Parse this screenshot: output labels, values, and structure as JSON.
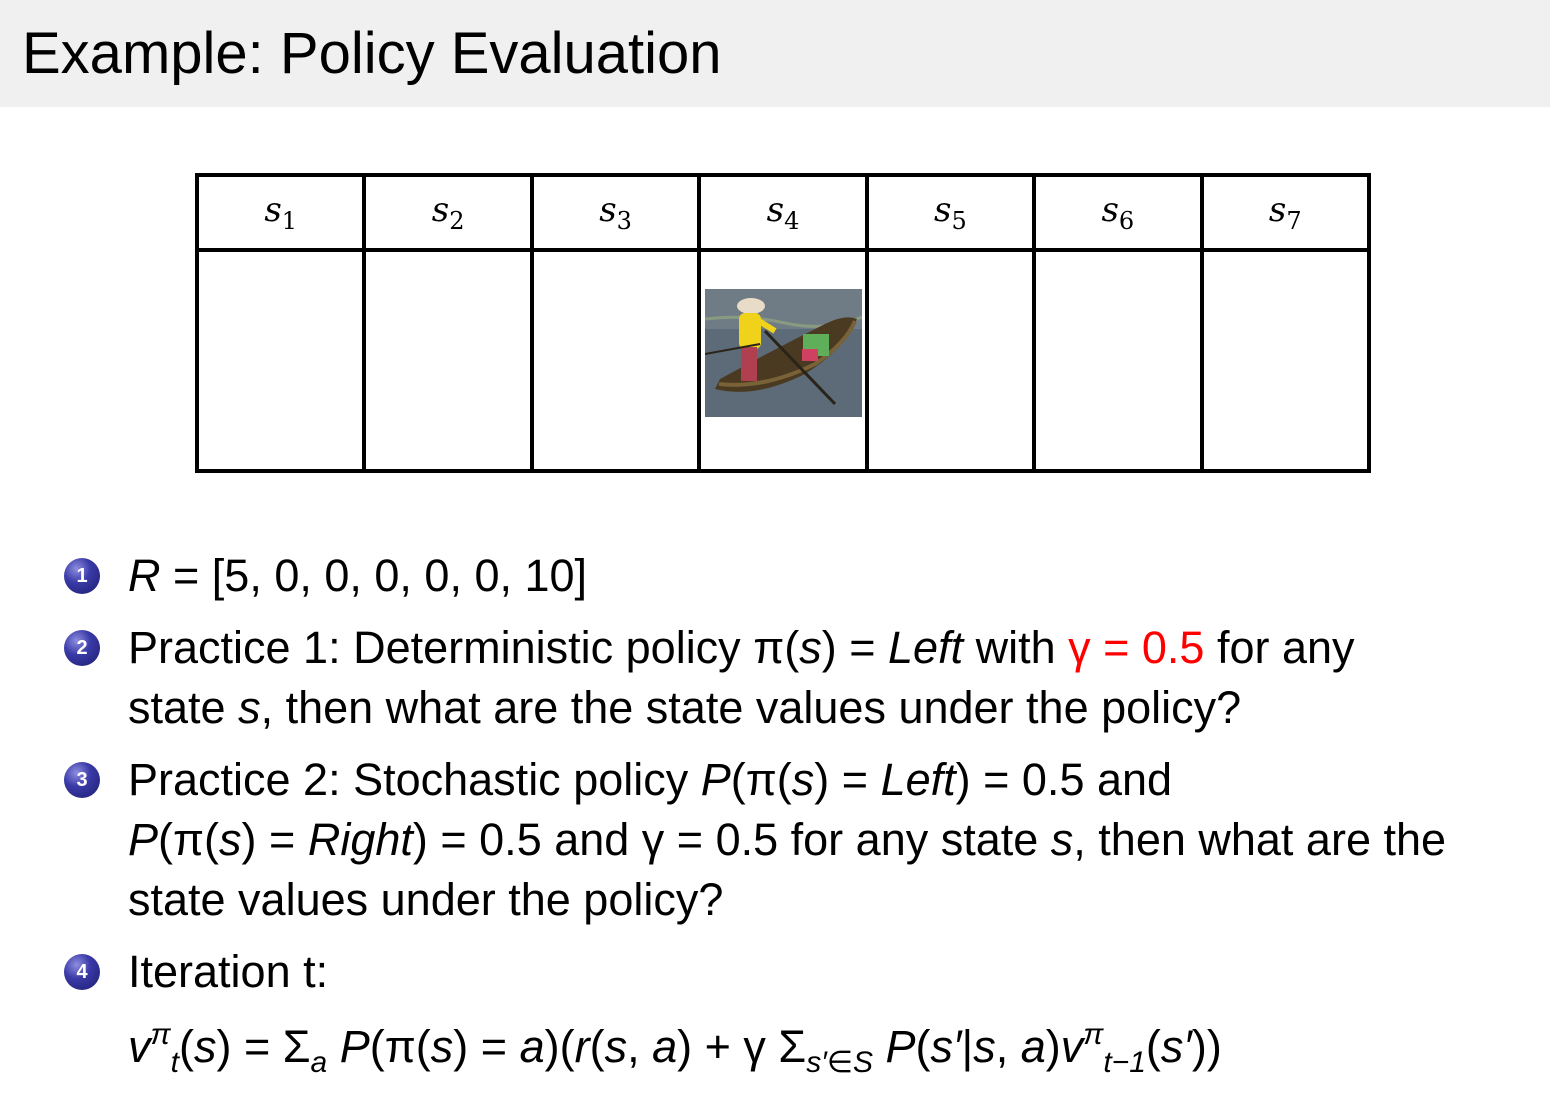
{
  "slide": {
    "title": "Example:  Policy Evaluation"
  },
  "states": [
    "1",
    "2",
    "3",
    "4",
    "5",
    "6",
    "7"
  ],
  "state_symbol": "s",
  "boat_cell_state": "s4",
  "accent_color": "#ff0000",
  "bullet_color": "#2a2a90",
  "bullets": [
    {
      "number": "1",
      "lines": [
        [
          [
            "R",
            "i"
          ],
          [
            " = [5, 0, 0, 0, 0, 0, 10]",
            "n"
          ]
        ]
      ]
    },
    {
      "number": "2",
      "lines": [
        [
          [
            "Practice 1:  Deterministic policy π(",
            "n"
          ],
          [
            "s",
            "i"
          ],
          [
            ") = ",
            "n"
          ],
          [
            "Left",
            "i"
          ],
          [
            " with ",
            "n"
          ],
          [
            "γ = 0.5",
            "r"
          ],
          [
            " for any",
            "n"
          ]
        ],
        [
          [
            "state ",
            "n"
          ],
          [
            "s",
            "i"
          ],
          [
            ", then what are the state values under the policy?",
            "n"
          ]
        ]
      ]
    },
    {
      "number": "3",
      "lines": [
        [
          [
            "Practice 2:  Stochastic policy ",
            "n"
          ],
          [
            "P",
            "i"
          ],
          [
            "(π(",
            "n"
          ],
          [
            "s",
            "i"
          ],
          [
            ") = ",
            "n"
          ],
          [
            "Left",
            "i"
          ],
          [
            ") = 0.5 and",
            "n"
          ]
        ],
        [
          [
            "P",
            "i"
          ],
          [
            "(π(",
            "n"
          ],
          [
            "s",
            "i"
          ],
          [
            ") = ",
            "n"
          ],
          [
            "Right",
            "i"
          ],
          [
            ") = 0.5 and γ = 0.5 for any state ",
            "n"
          ],
          [
            "s",
            "i"
          ],
          [
            ", then what are the",
            "n"
          ]
        ],
        [
          [
            "state values under the policy?",
            "n"
          ]
        ]
      ]
    },
    {
      "number": "4",
      "lines": [
        [
          [
            "Iteration t:",
            "n"
          ]
        ],
        [
          [
            "v",
            "i"
          ],
          [
            "π",
            "sup"
          ],
          [
            "t",
            "sub"
          ],
          [
            "(",
            "n"
          ],
          [
            "s",
            "i"
          ],
          [
            ") = Σ",
            "n"
          ],
          [
            "a",
            "sub"
          ],
          [
            " P",
            "i"
          ],
          [
            "(π(",
            "n"
          ],
          [
            "s",
            "i"
          ],
          [
            ") = ",
            "n"
          ],
          [
            "a",
            "i"
          ],
          [
            ")(",
            "n"
          ],
          [
            "r",
            "i"
          ],
          [
            "(",
            "n"
          ],
          [
            "s",
            "i"
          ],
          [
            ", ",
            "n"
          ],
          [
            "a",
            "i"
          ],
          [
            ") + γ Σ",
            "n"
          ],
          [
            "s′∈S",
            "sub"
          ],
          [
            " P",
            "i"
          ],
          [
            "(",
            "n"
          ],
          [
            "s′",
            "i"
          ],
          [
            "|",
            "n"
          ],
          [
            "s",
            "i"
          ],
          [
            ", ",
            "n"
          ],
          [
            "a",
            "i"
          ],
          [
            ")",
            "n"
          ],
          [
            "v",
            "i"
          ],
          [
            "π",
            "sup"
          ],
          [
            "t−1",
            "sub"
          ],
          [
            "(",
            "n"
          ],
          [
            "s′",
            "i"
          ],
          [
            "))",
            "n"
          ]
        ]
      ]
    }
  ]
}
